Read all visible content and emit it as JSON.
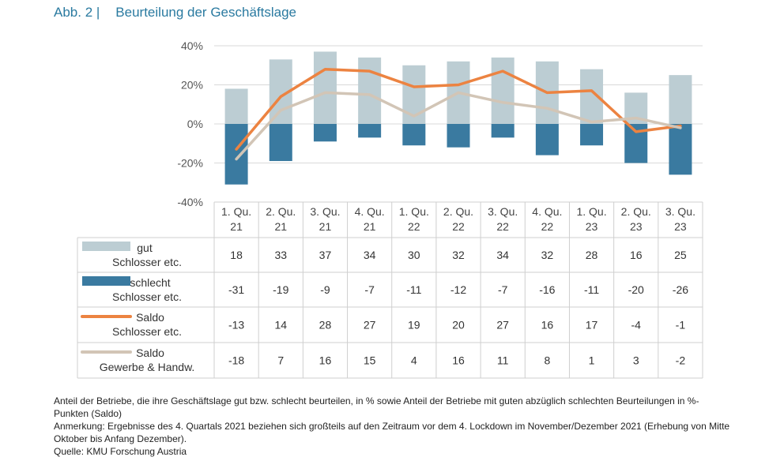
{
  "figure_label": "Abb. 2 |",
  "figure_title": "Beurteilung der Geschäftslage",
  "chart_data": {
    "type": "bar",
    "categories": [
      [
        "1. Qu.",
        "21"
      ],
      [
        "2. Qu.",
        "21"
      ],
      [
        "3. Qu.",
        "21"
      ],
      [
        "4. Qu.",
        "21"
      ],
      [
        "1. Qu.",
        "22"
      ],
      [
        "2. Qu.",
        "22"
      ],
      [
        "3. Qu.",
        "22"
      ],
      [
        "4. Qu.",
        "22"
      ],
      [
        "1. Qu.",
        "23"
      ],
      [
        "2. Qu.",
        "23"
      ],
      [
        "3. Qu.",
        "23"
      ]
    ],
    "ylim": [
      -40,
      40
    ],
    "yticks": [
      "-40%",
      "-20%",
      "0%",
      "20%",
      "40%"
    ],
    "grid": true,
    "series": [
      {
        "name": "gut",
        "name2": "Schlosser etc.",
        "kind": "bar",
        "color": "#bccdd3",
        "values": [
          18,
          33,
          37,
          34,
          30,
          32,
          34,
          32,
          28,
          16,
          25
        ]
      },
      {
        "name": "schlecht",
        "name2": "Schlosser etc.",
        "kind": "bar",
        "color": "#3a7aa0",
        "values": [
          -31,
          -19,
          -9,
          -7,
          -11,
          -12,
          -7,
          -16,
          -11,
          -20,
          -26
        ]
      },
      {
        "name": "Saldo",
        "name2": "Schlosser etc.",
        "kind": "line",
        "color": "#ec8341",
        "values": [
          -13,
          14,
          28,
          27,
          19,
          20,
          27,
          16,
          17,
          -4,
          -1
        ]
      },
      {
        "name": "Saldo",
        "name2": "Gewerbe & Handw.",
        "kind": "line",
        "color": "#d2c5b6",
        "values": [
          -18,
          7,
          16,
          15,
          4,
          16,
          11,
          8,
          1,
          3,
          -2
        ]
      }
    ]
  },
  "notes": [
    "Anteil der Betriebe, die ihre Geschäftslage gut bzw. schlecht beurteilen, in % sowie Anteil der Betriebe mit guten abzüglich schlechten Beurteilungen in %-Punkten (Saldo)",
    "Anmerkung: Ergebnisse des 4. Quartals 2021 beziehen sich großteils auf den Zeitraum vor dem 4. Lockdown im November/Dezember 2021 (Erhebung von Mitte Oktober bis Anfang Dezember).",
    "Quelle: KMU Forschung Austria"
  ]
}
